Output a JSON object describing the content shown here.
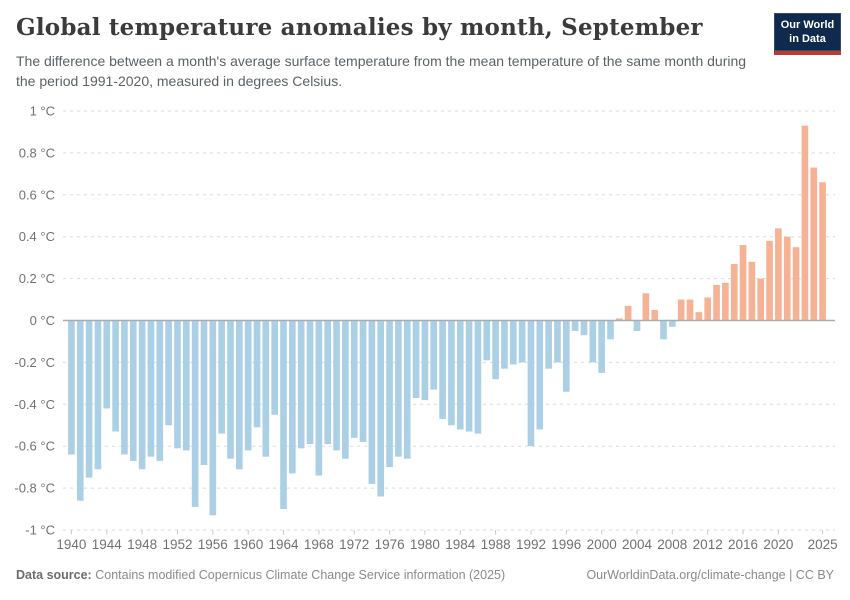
{
  "header": {
    "title": "Global temperature anomalies by month, September",
    "subtitle": "The difference between a month's average surface temperature from the mean temperature of the same month during the period 1991-2020, measured in degrees Celsius."
  },
  "logo": {
    "line1": "Our World",
    "line2": "in Data"
  },
  "chart_data": {
    "type": "bar",
    "title": "Global temperature anomalies by month, September",
    "xlabel": "",
    "ylabel": "degrees Celsius",
    "unit": "°C",
    "ylim": [
      -1,
      1
    ],
    "grid": "dashed-horizontal",
    "legend": "none",
    "years": [
      1940,
      1941,
      1942,
      1943,
      1944,
      1945,
      1946,
      1947,
      1948,
      1949,
      1950,
      1951,
      1952,
      1953,
      1954,
      1955,
      1956,
      1957,
      1958,
      1959,
      1960,
      1961,
      1962,
      1963,
      1964,
      1965,
      1966,
      1967,
      1968,
      1969,
      1970,
      1971,
      1972,
      1973,
      1974,
      1975,
      1976,
      1977,
      1978,
      1979,
      1980,
      1981,
      1982,
      1983,
      1984,
      1985,
      1986,
      1987,
      1988,
      1989,
      1990,
      1991,
      1992,
      1993,
      1994,
      1995,
      1996,
      1997,
      1998,
      1999,
      2000,
      2001,
      2002,
      2003,
      2004,
      2005,
      2006,
      2007,
      2008,
      2009,
      2010,
      2011,
      2012,
      2013,
      2014,
      2015,
      2016,
      2017,
      2018,
      2019,
      2020,
      2021,
      2022,
      2023,
      2024,
      2025
    ],
    "values": [
      -0.64,
      -0.86,
      -0.75,
      -0.71,
      -0.42,
      -0.53,
      -0.64,
      -0.67,
      -0.71,
      -0.65,
      -0.67,
      -0.5,
      -0.61,
      -0.62,
      -0.89,
      -0.69,
      -0.93,
      -0.54,
      -0.66,
      -0.71,
      -0.62,
      -0.51,
      -0.65,
      -0.45,
      -0.9,
      -0.73,
      -0.61,
      -0.59,
      -0.74,
      -0.59,
      -0.62,
      -0.66,
      -0.56,
      -0.58,
      -0.78,
      -0.84,
      -0.7,
      -0.65,
      -0.66,
      -0.37,
      -0.38,
      -0.33,
      -0.47,
      -0.5,
      -0.52,
      -0.53,
      -0.54,
      -0.19,
      -0.28,
      -0.23,
      -0.21,
      -0.2,
      -0.6,
      -0.52,
      -0.23,
      -0.2,
      -0.34,
      -0.05,
      -0.07,
      -0.2,
      -0.25,
      -0.09,
      0.01,
      0.07,
      -0.05,
      0.13,
      0.05,
      -0.09,
      -0.03,
      0.1,
      0.1,
      0.04,
      0.11,
      0.17,
      0.18,
      0.27,
      0.36,
      0.28,
      0.2,
      0.38,
      0.44,
      0.4,
      0.35,
      0.93,
      0.73,
      0.66
    ],
    "yticks": [
      1,
      0.8,
      0.6,
      0.4,
      0.2,
      0,
      -0.2,
      -0.4,
      -0.6,
      -0.8,
      -1
    ],
    "ytick_labels": [
      "1 °C",
      "0.8 °C",
      "0.6 °C",
      "0.4 °C",
      "0.2 °C",
      "0 °C",
      "-0.2 °C",
      "-0.4 °C",
      "-0.6 °C",
      "-0.8 °C",
      "-1 °C"
    ],
    "xticks": [
      1940,
      1944,
      1948,
      1952,
      1956,
      1960,
      1964,
      1968,
      1972,
      1976,
      1980,
      1984,
      1988,
      1992,
      1996,
      2000,
      2004,
      2008,
      2012,
      2016,
      2020,
      2025
    ],
    "colors": {
      "positive": "#f6b294",
      "negative": "#abd0e6"
    }
  },
  "footer": {
    "source_label": "Data source:",
    "source_text": "Contains modified Copernicus Climate Change Service information (2025)",
    "credit": "OurWorldinData.org/climate-change | CC BY"
  }
}
